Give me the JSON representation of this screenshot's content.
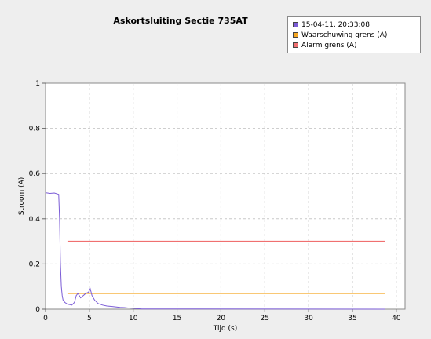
{
  "chart_data": {
    "type": "line",
    "title": "Askortsluiting Sectie 735AT",
    "xlabel": "Tijd (s)",
    "ylabel": "Stroom (A)",
    "xlim": [
      0,
      41
    ],
    "ylim": [
      0,
      1
    ],
    "xticks": [
      0,
      5,
      10,
      15,
      20,
      25,
      30,
      35,
      40
    ],
    "yticks": [
      0,
      0.2,
      0.4,
      0.6,
      0.8,
      1
    ],
    "xtick_labels": [
      "0",
      "5",
      "10",
      "15",
      "20",
      "25",
      "30",
      "35",
      "40"
    ],
    "ytick_labels": [
      "0",
      "0.2",
      "0.4",
      "0.6",
      "0.8",
      "1"
    ],
    "grid": true,
    "legend_position": "top-right",
    "series": [
      {
        "name": "15-04-11, 20:33:08",
        "color": "#7b5cd6",
        "x": [
          0,
          0.5,
          1.0,
          1.5,
          1.6,
          1.7,
          1.8,
          1.9,
          2.0,
          2.2,
          2.5,
          2.8,
          3.0,
          3.3,
          3.5,
          3.7,
          4.0,
          4.3,
          4.6,
          4.9,
          5.1,
          5.3,
          5.6,
          6.0,
          6.5,
          7.0,
          7.5,
          8.0,
          8.5,
          9.0,
          9.5,
          10.0,
          10.5,
          11.0,
          38.7
        ],
        "y": [
          0.515,
          0.512,
          0.514,
          0.508,
          0.4,
          0.2,
          0.1,
          0.06,
          0.04,
          0.03,
          0.022,
          0.02,
          0.018,
          0.03,
          0.06,
          0.07,
          0.05,
          0.06,
          0.07,
          0.075,
          0.09,
          0.06,
          0.04,
          0.025,
          0.018,
          0.014,
          0.012,
          0.01,
          0.008,
          0.007,
          0.005,
          0.004,
          0.002,
          0.001,
          0.0
        ]
      },
      {
        "name": "Waarschuwing grens (A)",
        "color": "#f5a623",
        "x": [
          2.5,
          38.7
        ],
        "y": [
          0.07,
          0.07
        ]
      },
      {
        "name": "Alarm grens (A)",
        "color": "#f07070",
        "x": [
          2.5,
          38.7
        ],
        "y": [
          0.3,
          0.3
        ]
      }
    ]
  }
}
